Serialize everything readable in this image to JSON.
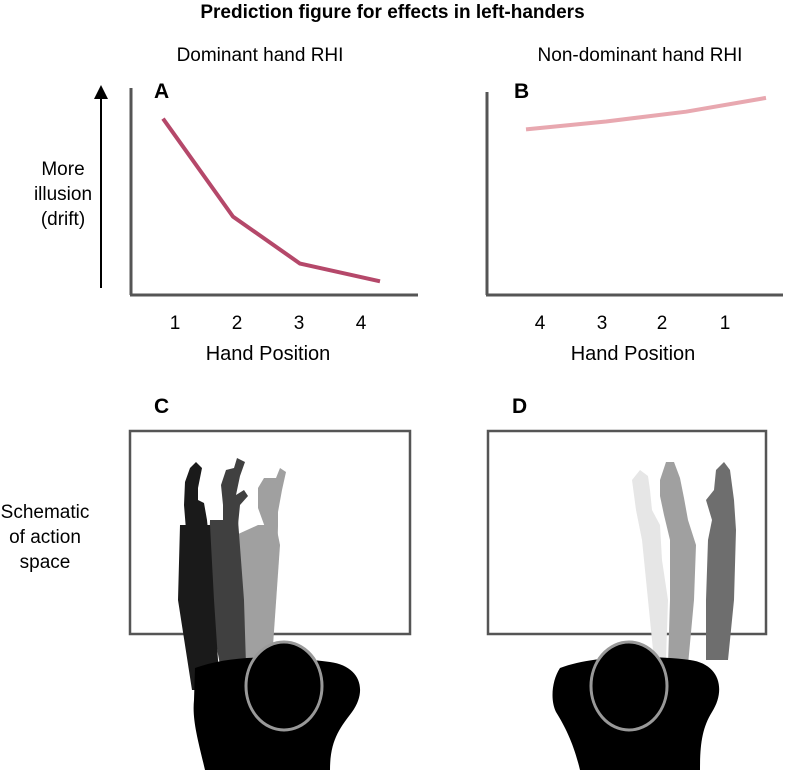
{
  "title": "Prediction figure for effects in left-handers",
  "y_axis_label": [
    "More",
    "illusion",
    "(drift)"
  ],
  "schematic_label": [
    "Schematic",
    "of action",
    "space"
  ],
  "panel_letters": {
    "A": "A",
    "B": "B",
    "C": "C",
    "D": "D"
  },
  "colors": {
    "dominant_line": "#b5486a",
    "nondominant_line": "#e8a8b0",
    "axis": "#555555",
    "frame": "#555555",
    "head_outline": "#999999"
  },
  "chart_data": [
    {
      "type": "line",
      "panel": "A",
      "title": "Dominant hand RHI",
      "xlabel": "Hand Position",
      "ylabel": "",
      "categories": [
        "1",
        "2",
        "3",
        "4"
      ],
      "values": [
        9.0,
        4.0,
        1.6,
        0.7
      ],
      "ylim": [
        0,
        10
      ],
      "grid": false
    },
    {
      "type": "line",
      "panel": "B",
      "title": "Non-dominant hand RHI",
      "xlabel": "Hand Position",
      "ylabel": "",
      "categories": [
        "4",
        "3",
        "2",
        "1"
      ],
      "values": [
        8.4,
        8.8,
        9.3,
        10.0
      ],
      "ylim": [
        0,
        10.5
      ],
      "grid": false
    }
  ],
  "schematics": [
    {
      "panel": "C",
      "arm_shades": [
        "#1a1a1a",
        "#404040",
        "#a0a0a0"
      ]
    },
    {
      "panel": "D",
      "arm_shades": [
        "#e6e6e6",
        "#a0a0a0",
        "#6e6e6e"
      ]
    }
  ]
}
